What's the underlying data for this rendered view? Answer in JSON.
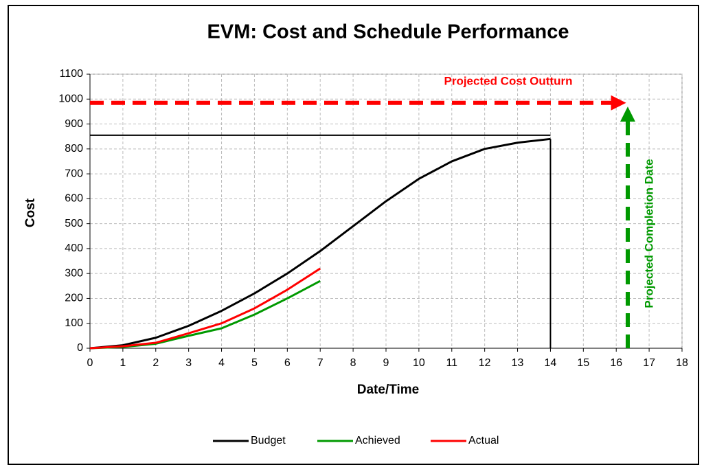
{
  "chart_data": {
    "type": "line",
    "title": "EVM: Cost and Schedule Performance",
    "x_label": "Date/Time",
    "y_label": "Cost",
    "xlim": [
      0,
      18
    ],
    "xticks": [
      0,
      1,
      2,
      3,
      4,
      5,
      6,
      7,
      8,
      9,
      10,
      11,
      12,
      13,
      14,
      15,
      16,
      17,
      18
    ],
    "ylim": [
      0,
      1100
    ],
    "yticks": [
      0,
      100,
      200,
      300,
      400,
      500,
      600,
      700,
      800,
      900,
      1000,
      1100
    ],
    "grid": true,
    "legend": "bottom",
    "series": [
      {
        "name": "Budget",
        "color": "#000000",
        "x": [
          0,
          1,
          2,
          3,
          4,
          5,
          6,
          7,
          8,
          9,
          10,
          11,
          12,
          13,
          14
        ],
        "values": [
          0,
          12,
          42,
          90,
          150,
          220,
          300,
          390,
          490,
          590,
          680,
          750,
          800,
          825,
          840
        ]
      },
      {
        "name": "Achieved",
        "color": "#009900",
        "x": [
          0,
          1,
          2,
          3,
          4,
          5,
          6,
          7
        ],
        "values": [
          0,
          5,
          18,
          50,
          80,
          135,
          200,
          270
        ]
      },
      {
        "name": "Actual",
        "color": "#ff0000",
        "x": [
          0,
          1,
          2,
          3,
          4,
          5,
          6,
          7
        ],
        "values": [
          0,
          8,
          22,
          60,
          100,
          160,
          235,
          320
        ]
      }
    ],
    "budget_at_completion": {
      "value": 855,
      "x_end": 14,
      "color": "#000000"
    },
    "planned_completion": {
      "value": 14,
      "y_end": 840,
      "color": "#000000"
    },
    "projected_cost": {
      "label": "Projected Cost Outturn",
      "value": 985,
      "x_end": 16.3,
      "color": "#ff0000"
    },
    "projected_date": {
      "label": "Projected Completion Date",
      "value": 16.35,
      "y_end": 970,
      "color": "#009900"
    }
  }
}
